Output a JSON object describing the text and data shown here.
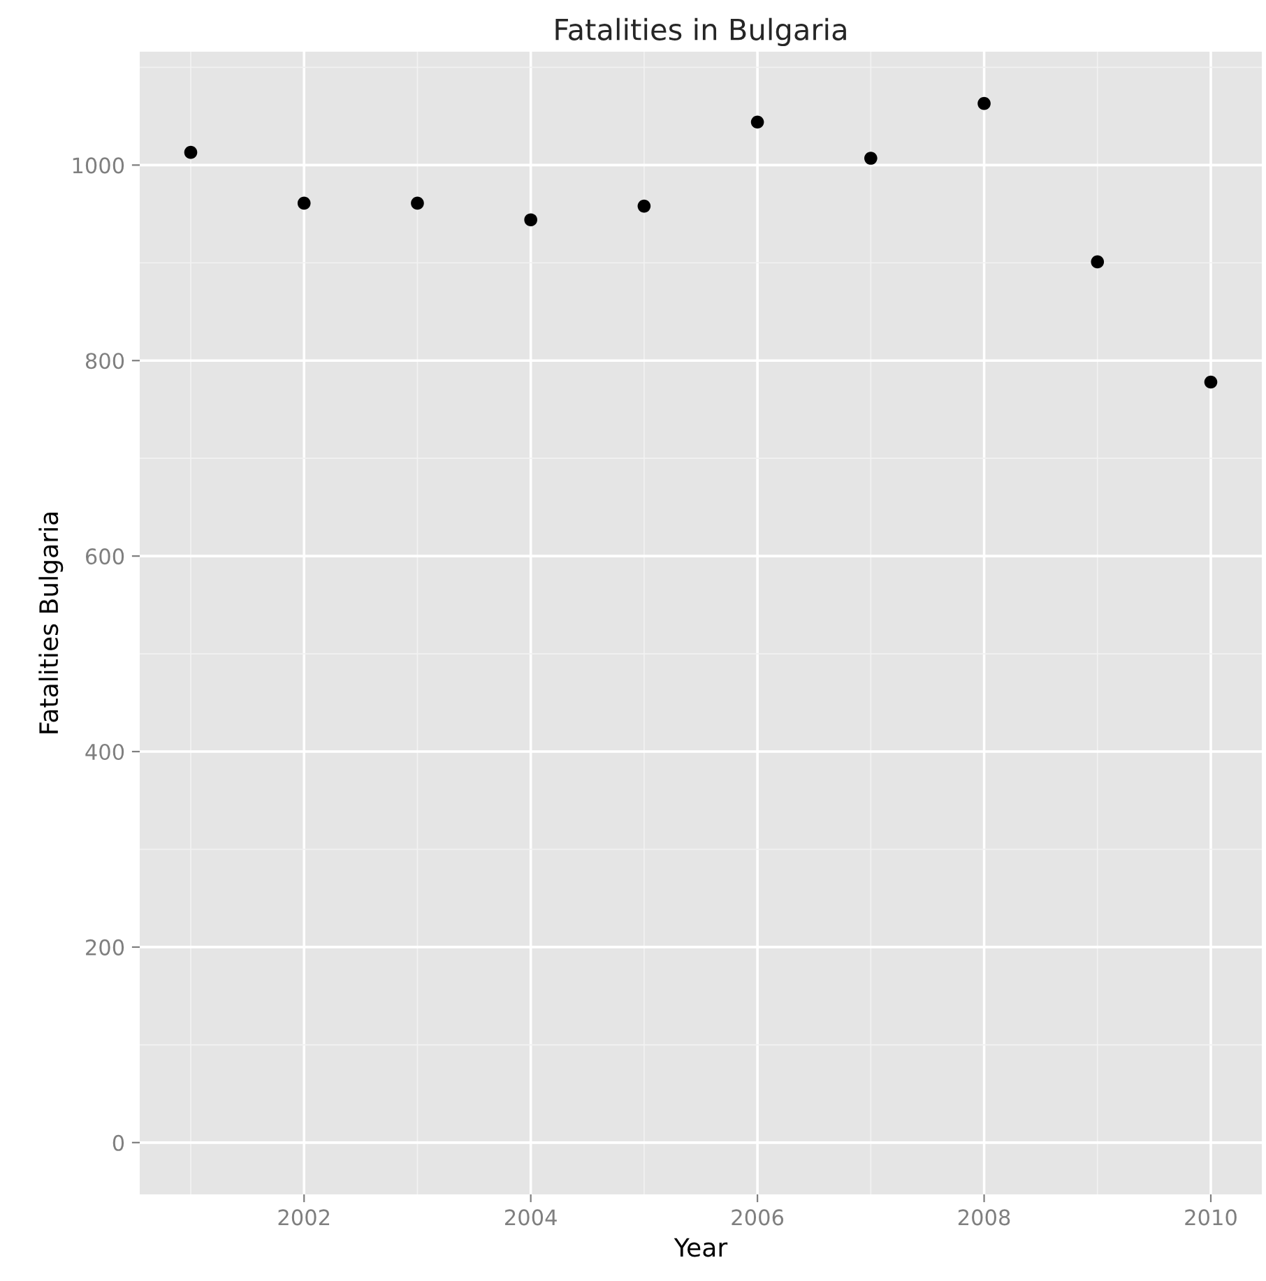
{
  "chart_data": {
    "type": "scatter",
    "title": "Fatalities in Bulgaria",
    "xlabel": "Year",
    "ylabel": "Fatalities Bulgaria",
    "x": [
      2001,
      2002,
      2003,
      2004,
      2005,
      2006,
      2007,
      2008,
      2009,
      2010
    ],
    "series": [
      {
        "color": "#000000",
        "values": [
          1013,
          961,
          961,
          944,
          958,
          1044,
          1007,
          1063,
          901,
          778
        ]
      }
    ],
    "xlim": [
      2000.55,
      2010.45
    ],
    "xticks": [
      2002,
      2004,
      2006,
      2008,
      2010
    ],
    "ylim": [
      -53,
      1116
    ],
    "yticks": [
      0,
      200,
      400,
      600,
      800,
      1000
    ],
    "grid": true,
    "marker": "circle"
  }
}
